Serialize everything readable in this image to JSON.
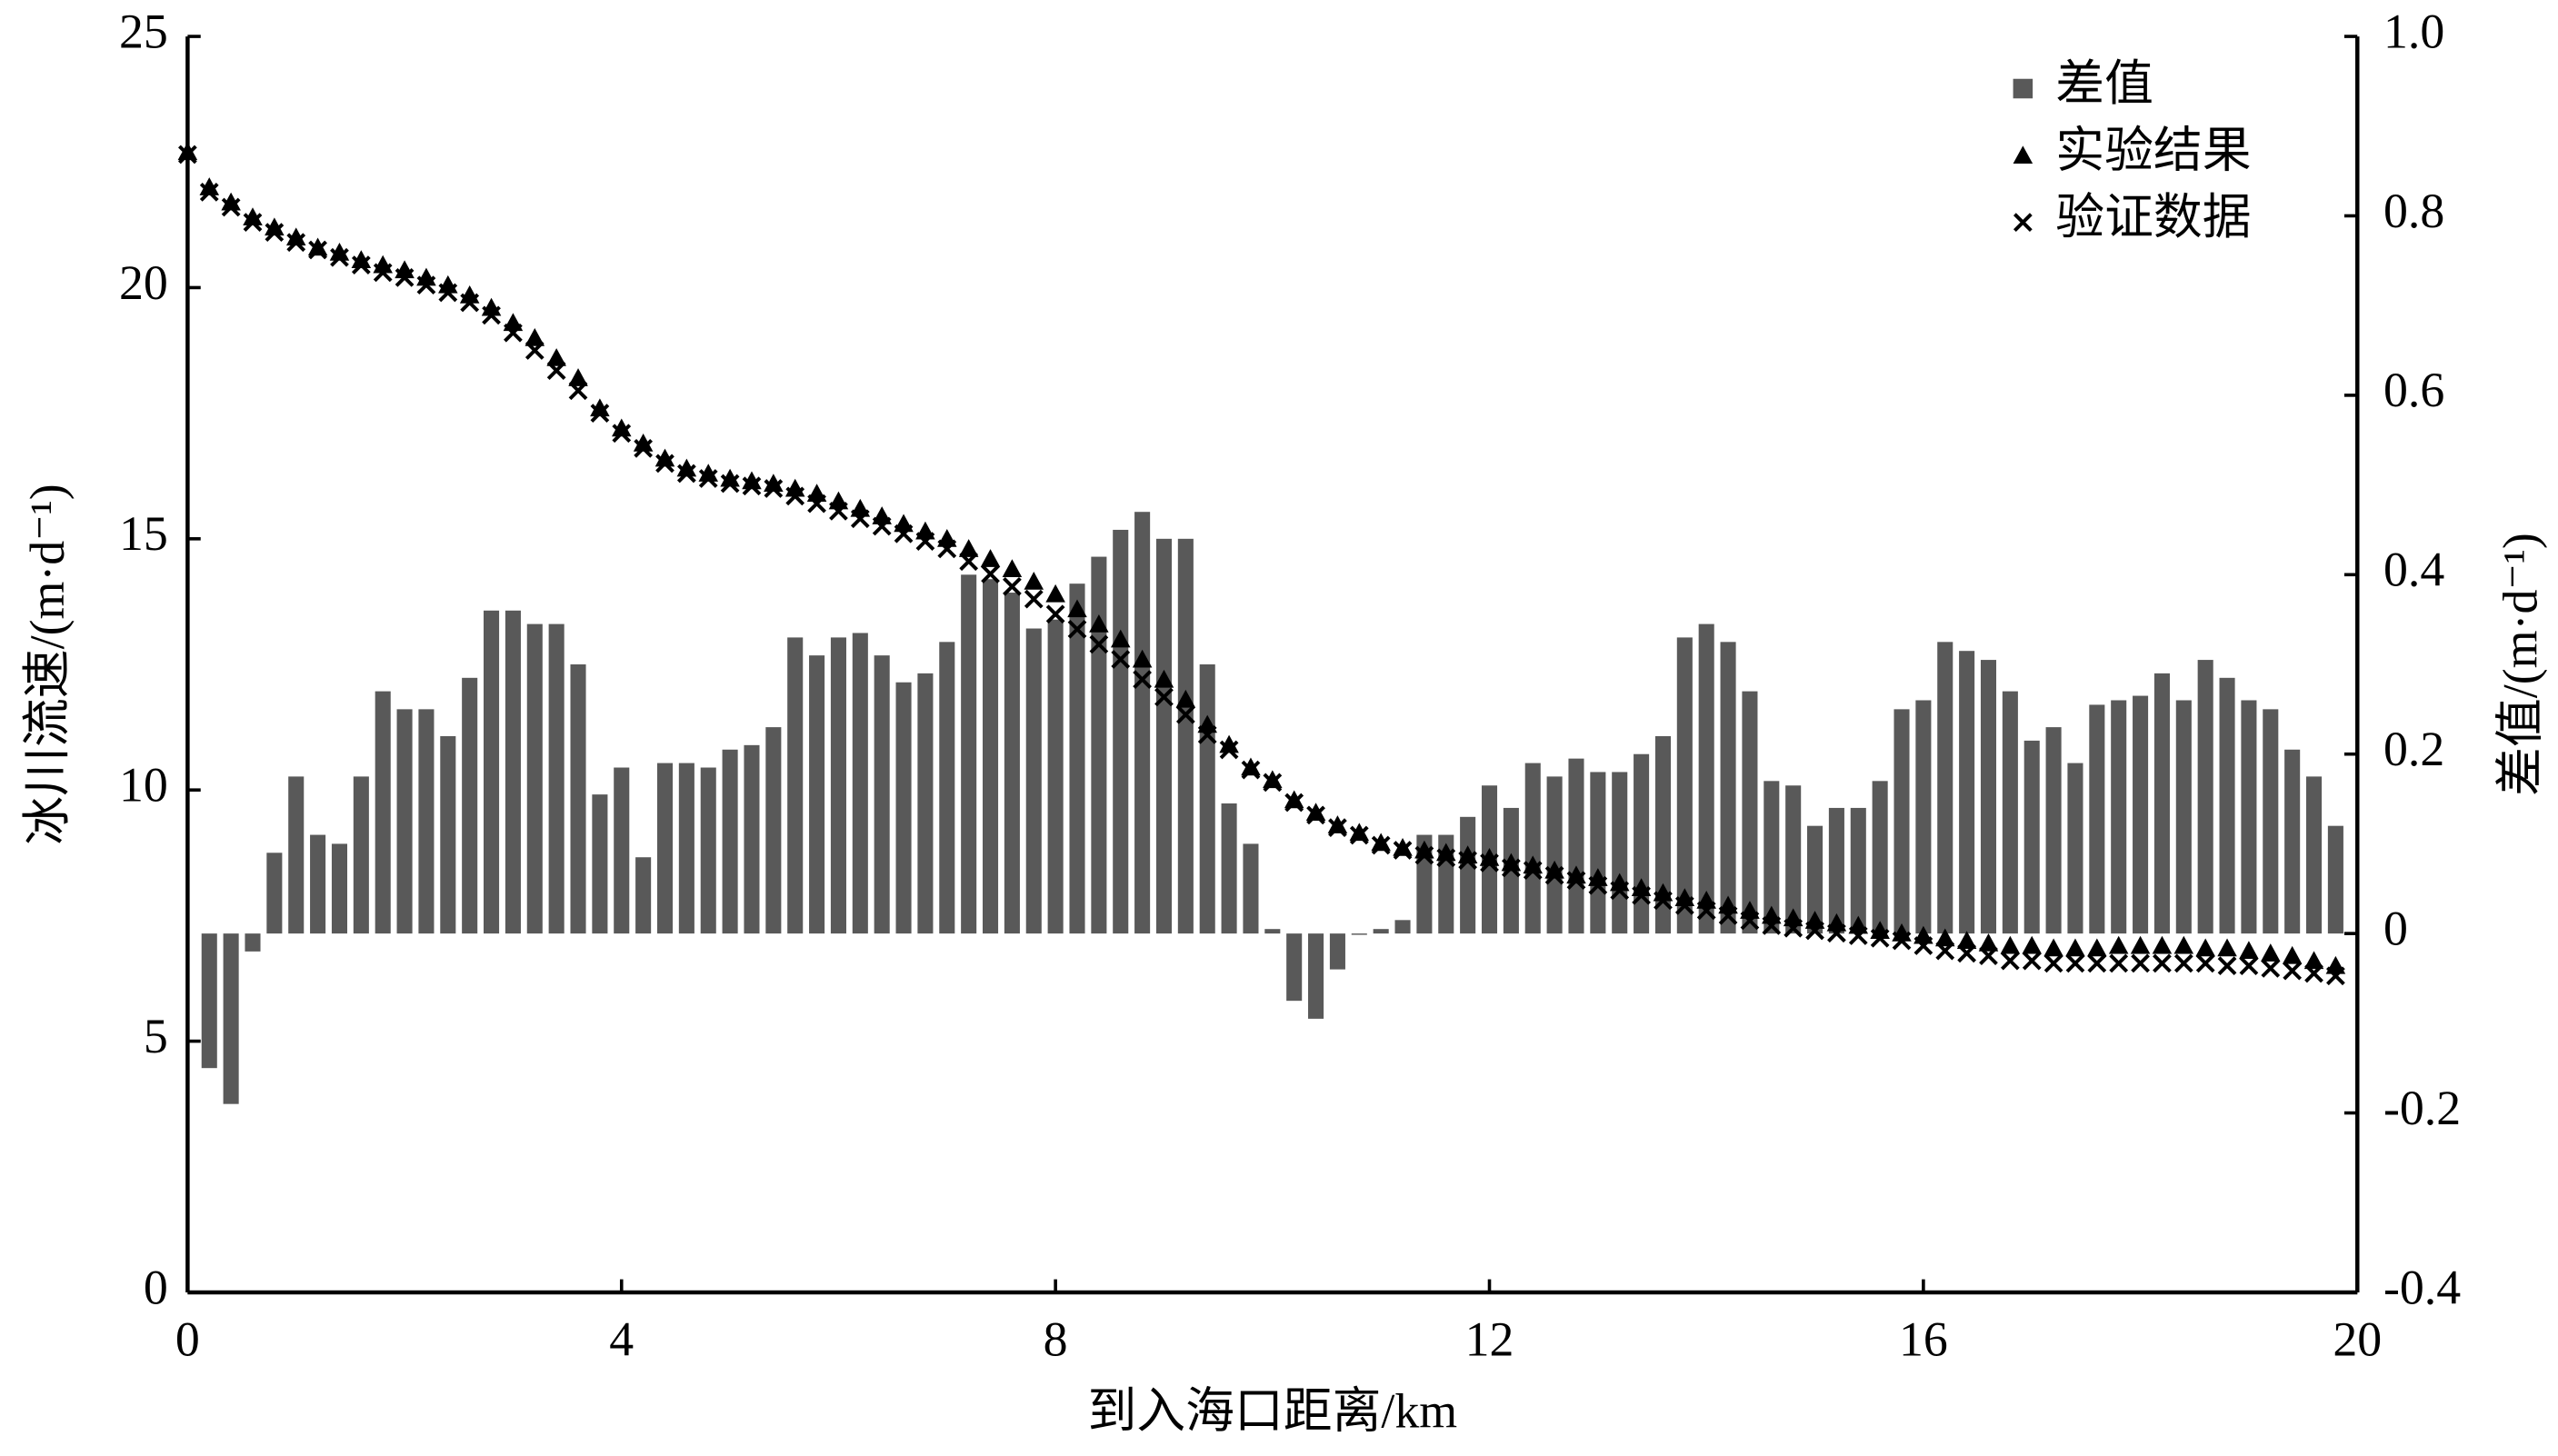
{
  "chart_data": {
    "type": "combo",
    "x_label": "到入海口距离/km",
    "y_label": "冰川流速/(m·d⁻¹)",
    "y2_label": "差值/(m·d⁻¹)",
    "xlim": [
      0,
      20
    ],
    "xticks": [
      0,
      4,
      8,
      12,
      16,
      20
    ],
    "ylim": [
      0,
      25
    ],
    "yticks": [
      0,
      5,
      10,
      15,
      20,
      25
    ],
    "y2lim": [
      -0.4,
      1.0
    ],
    "y2ticks": [
      -0.4,
      -0.2,
      0,
      0.2,
      0.4,
      0.6,
      0.8,
      {
        "value": 1,
        "label": "1.0"
      }
    ],
    "legend": "upper right",
    "series": [
      {
        "name": "差值",
        "type": "bar",
        "axis": "y2",
        "color": "#595959",
        "x": [
          0.2,
          0.4,
          0.6,
          0.8,
          1.0,
          1.2,
          1.4,
          1.6,
          1.8,
          2.0,
          2.2,
          2.4,
          2.6,
          2.8,
          3.0,
          3.2,
          3.4,
          3.6,
          3.8,
          4.0,
          4.2,
          4.4,
          4.6,
          4.8,
          5.0,
          5.2,
          5.4,
          5.6,
          5.8,
          6.0,
          6.2,
          6.4,
          6.6,
          6.8,
          7.0,
          7.2,
          7.4,
          7.6,
          7.8,
          8.0,
          8.2,
          8.4,
          8.6,
          8.8,
          9.0,
          9.2,
          9.4,
          9.6,
          9.8,
          10.0,
          10.2,
          10.4,
          10.6,
          10.8,
          11.0,
          11.2,
          11.4,
          11.6,
          11.8,
          12.0,
          12.2,
          12.4,
          12.6,
          12.8,
          13.0,
          13.2,
          13.4,
          13.6,
          13.8,
          14.0,
          14.2,
          14.4,
          14.6,
          14.8,
          15.0,
          15.2,
          15.4,
          15.6,
          15.8,
          16.0,
          16.2,
          16.4,
          16.6,
          16.8,
          17.0,
          17.2,
          17.4,
          17.6,
          17.8,
          18.0,
          18.2,
          18.4,
          18.6,
          18.8,
          19.0,
          19.2,
          19.4,
          19.6,
          19.8
        ],
        "values": [
          -0.15,
          -0.19,
          -0.02,
          0.09,
          0.175,
          0.11,
          0.1,
          0.175,
          0.27,
          0.25,
          0.25,
          0.22,
          0.285,
          0.36,
          0.36,
          0.345,
          0.345,
          0.3,
          0.155,
          0.185,
          0.085,
          0.19,
          0.19,
          0.185,
          0.205,
          0.21,
          0.23,
          0.33,
          0.31,
          0.33,
          0.335,
          0.31,
          0.28,
          0.29,
          0.325,
          0.4,
          0.395,
          0.38,
          0.34,
          0.35,
          0.39,
          0.42,
          0.45,
          0.47,
          0.44,
          0.44,
          0.3,
          0.145,
          0.1,
          0.005,
          -0.075,
          -0.095,
          -0.04,
          0,
          0.005,
          0.015,
          0.11,
          0.11,
          0.13,
          0.165,
          0.14,
          0.19,
          0.175,
          0.195,
          0.18,
          0.18,
          0.2,
          0.22,
          0.33,
          0.345,
          0.325,
          0.27,
          0.17,
          0.165,
          0.12,
          0.14,
          0.14,
          0.17,
          0.25,
          0.26,
          0.325,
          0.315,
          0.305,
          0.27,
          0.215,
          0.23,
          0.19,
          0.255,
          0.26,
          0.265,
          0.29,
          0.26,
          0.305,
          0.285,
          0.26,
          0.25,
          0.205,
          0.175,
          0.12
        ]
      },
      {
        "name": "实验结果",
        "type": "scatter",
        "marker": "triangle",
        "color": "#000000",
        "x": [
          0,
          0.2,
          0.4,
          0.6,
          0.8,
          1.0,
          1.2,
          1.4,
          1.6,
          1.8,
          2.0,
          2.2,
          2.4,
          2.6,
          2.8,
          3.0,
          3.2,
          3.4,
          3.6,
          3.8,
          4.0,
          4.2,
          4.4,
          4.6,
          4.8,
          5.0,
          5.2,
          5.4,
          5.6,
          5.8,
          6.0,
          6.2,
          6.4,
          6.6,
          6.8,
          7.0,
          7.2,
          7.4,
          7.6,
          7.8,
          8.0,
          8.2,
          8.4,
          8.6,
          8.8,
          9.0,
          9.2,
          9.4,
          9.6,
          9.8,
          10.0,
          10.2,
          10.4,
          10.6,
          10.8,
          11.0,
          11.2,
          11.4,
          11.6,
          11.8,
          12.0,
          12.2,
          12.4,
          12.6,
          12.8,
          13.0,
          13.2,
          13.4,
          13.6,
          13.8,
          14.0,
          14.2,
          14.4,
          14.6,
          14.8,
          15.0,
          15.2,
          15.4,
          15.6,
          15.8,
          16.0,
          16.2,
          16.4,
          16.6,
          16.8,
          17.0,
          17.2,
          17.4,
          17.6,
          17.8,
          18.0,
          18.2,
          18.4,
          18.6,
          18.8,
          19.0,
          19.2,
          19.4,
          19.6,
          19.8
        ],
        "values": [
          22.7,
          22.0,
          21.7,
          21.4,
          21.2,
          21.0,
          20.8,
          20.7,
          20.55,
          20.45,
          20.35,
          20.2,
          20.05,
          19.85,
          19.6,
          19.3,
          19.0,
          18.6,
          18.2,
          17.6,
          17.2,
          16.9,
          16.6,
          16.4,
          16.3,
          16.2,
          16.15,
          16.1,
          16.0,
          15.9,
          15.75,
          15.6,
          15.45,
          15.3,
          15.15,
          15.0,
          14.8,
          14.6,
          14.4,
          14.15,
          13.9,
          13.6,
          13.3,
          13.0,
          12.6,
          12.2,
          11.8,
          11.3,
          10.9,
          10.45,
          10.2,
          9.8,
          9.55,
          9.3,
          9.15,
          8.95,
          8.85,
          8.8,
          8.75,
          8.7,
          8.65,
          8.55,
          8.5,
          8.4,
          8.3,
          8.25,
          8.15,
          8.05,
          7.95,
          7.85,
          7.8,
          7.7,
          7.6,
          7.5,
          7.45,
          7.4,
          7.35,
          7.3,
          7.2,
          7.15,
          7.1,
          7.05,
          7.0,
          6.95,
          6.9,
          6.9,
          6.85,
          6.85,
          6.85,
          6.9,
          6.9,
          6.9,
          6.9,
          6.85,
          6.85,
          6.8,
          6.75,
          6.7,
          6.6,
          6.5
        ]
      },
      {
        "name": "验证数据",
        "type": "scatter",
        "marker": "cross",
        "color": "#000000",
        "x": [
          0,
          0.2,
          0.4,
          0.6,
          0.8,
          1.0,
          1.2,
          1.4,
          1.6,
          1.8,
          2.0,
          2.2,
          2.4,
          2.6,
          2.8,
          3.0,
          3.2,
          3.4,
          3.6,
          3.8,
          4.0,
          4.2,
          4.4,
          4.6,
          4.8,
          5.0,
          5.2,
          5.4,
          5.6,
          5.8,
          6.0,
          6.2,
          6.4,
          6.6,
          6.8,
          7.0,
          7.2,
          7.4,
          7.6,
          7.8,
          8.0,
          8.2,
          8.4,
          8.6,
          8.8,
          9.0,
          9.2,
          9.4,
          9.6,
          9.8,
          10.0,
          10.2,
          10.4,
          10.6,
          10.8,
          11.0,
          11.2,
          11.4,
          11.6,
          11.8,
          12.0,
          12.2,
          12.4,
          12.6,
          12.8,
          13.0,
          13.2,
          13.4,
          13.6,
          13.8,
          14.0,
          14.2,
          14.4,
          14.6,
          14.8,
          15.0,
          15.2,
          15.4,
          15.6,
          15.8,
          16.0,
          16.2,
          16.4,
          16.6,
          16.8,
          17.0,
          17.2,
          17.4,
          17.6,
          17.8,
          18.0,
          18.2,
          18.4,
          18.6,
          18.8,
          19.0,
          19.2,
          19.4,
          19.6,
          19.8
        ],
        "values": [
          22.65,
          21.9,
          21.6,
          21.3,
          21.1,
          20.9,
          20.75,
          20.6,
          20.45,
          20.3,
          20.2,
          20.05,
          19.9,
          19.7,
          19.45,
          19.1,
          18.75,
          18.35,
          17.95,
          17.5,
          17.1,
          16.8,
          16.5,
          16.3,
          16.2,
          16.1,
          16.05,
          16.0,
          15.85,
          15.7,
          15.55,
          15.4,
          15.25,
          15.1,
          14.95,
          14.8,
          14.55,
          14.3,
          14.05,
          13.8,
          13.5,
          13.2,
          12.9,
          12.6,
          12.2,
          11.85,
          11.5,
          11.1,
          10.8,
          10.4,
          10.15,
          9.75,
          9.5,
          9.25,
          9.1,
          8.9,
          8.8,
          8.7,
          8.65,
          8.6,
          8.55,
          8.45,
          8.4,
          8.3,
          8.2,
          8.1,
          8.0,
          7.9,
          7.8,
          7.7,
          7.6,
          7.5,
          7.4,
          7.3,
          7.25,
          7.2,
          7.15,
          7.1,
          7.05,
          7.0,
          6.9,
          6.8,
          6.75,
          6.7,
          6.6,
          6.6,
          6.55,
          6.55,
          6.55,
          6.55,
          6.55,
          6.55,
          6.55,
          6.55,
          6.5,
          6.5,
          6.45,
          6.4,
          6.35,
          6.3
        ]
      }
    ]
  }
}
